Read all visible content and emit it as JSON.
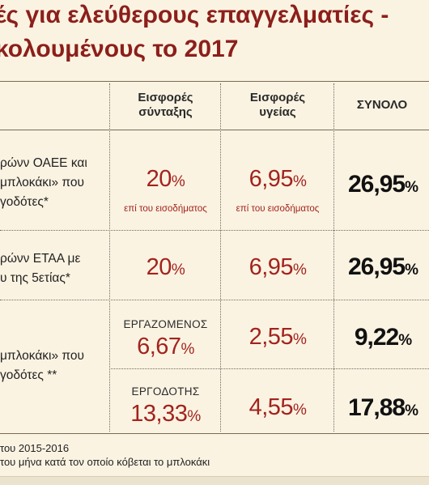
{
  "title": {
    "line1": "ές για ελεύθερους επαγγελματίες -",
    "line2": "κολουμένους το 2017"
  },
  "headers": {
    "col1": [
      "Εισφορές",
      "σύνταξης"
    ],
    "col2": [
      "Εισφορές",
      "υγείας"
    ],
    "col3": "ΣΥΝΟΛΟ"
  },
  "rows": [
    {
      "category": [
        "ρώνν ΟΑΕΕ και",
        "μπλοκάκι» που",
        "γοδότες*"
      ],
      "pension": "20",
      "pension_note": "επί του εισοδήματος",
      "health": "6,95",
      "health_note": "επί του εισοδήματος",
      "total": "26,95"
    },
    {
      "category": [
        "ρώνν ΕΤΑΑ με",
        "υ της 5ετίας*"
      ],
      "pension": "20",
      "health": "6,95",
      "total": "26,95"
    },
    {
      "category": [
        "μπλοκάκι» που",
        "γοδότες **"
      ],
      "employee": {
        "role": "ΕΡΓΑΖΟΜΕΝΟΣ",
        "pension": "6,67",
        "health": "2,55",
        "total": "9,22"
      },
      "employer": {
        "role": "ΕΡΓΟΔΟΤΗΣ",
        "pension": "13,33",
        "health": "4,55",
        "total": "17,88"
      }
    }
  ],
  "percent_symbol": "%",
  "footnotes": [
    "του 2015-2016",
    "του μήνα κατά τον οποίο κόβεται το μπλοκάκι"
  ]
}
